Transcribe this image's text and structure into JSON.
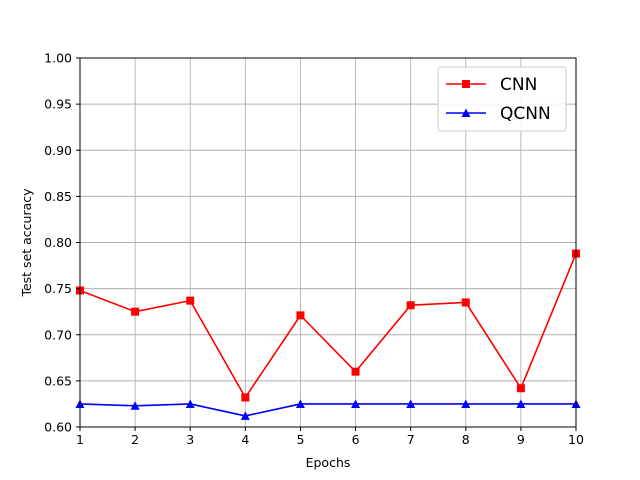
{
  "chart_data": {
    "type": "line",
    "title": "",
    "xlabel": "Epochs",
    "ylabel": "Test set accuracy",
    "xlim": [
      1,
      10
    ],
    "ylim": [
      0.6,
      1.0
    ],
    "xticks": [
      "1",
      "2",
      "3",
      "4",
      "5",
      "6",
      "7",
      "8",
      "9",
      "10"
    ],
    "yticks": [
      "0.60",
      "0.65",
      "0.70",
      "0.75",
      "0.80",
      "0.85",
      "0.90",
      "0.95",
      "1.00"
    ],
    "grid": true,
    "legend_position": "top-right",
    "x": [
      1,
      2,
      3,
      4,
      5,
      6,
      7,
      8,
      9,
      10
    ],
    "series": [
      {
        "name": "CNN",
        "color": "#ff0000",
        "marker": "square",
        "values": [
          0.748,
          0.725,
          0.737,
          0.632,
          0.721,
          0.66,
          0.732,
          0.735,
          0.642,
          0.788
        ]
      },
      {
        "name": "QCNN",
        "color": "#0000ff",
        "marker": "triangle",
        "values": [
          0.625,
          0.623,
          0.625,
          0.612,
          0.625,
          0.625,
          0.625,
          0.625,
          0.625,
          0.625
        ]
      }
    ]
  }
}
